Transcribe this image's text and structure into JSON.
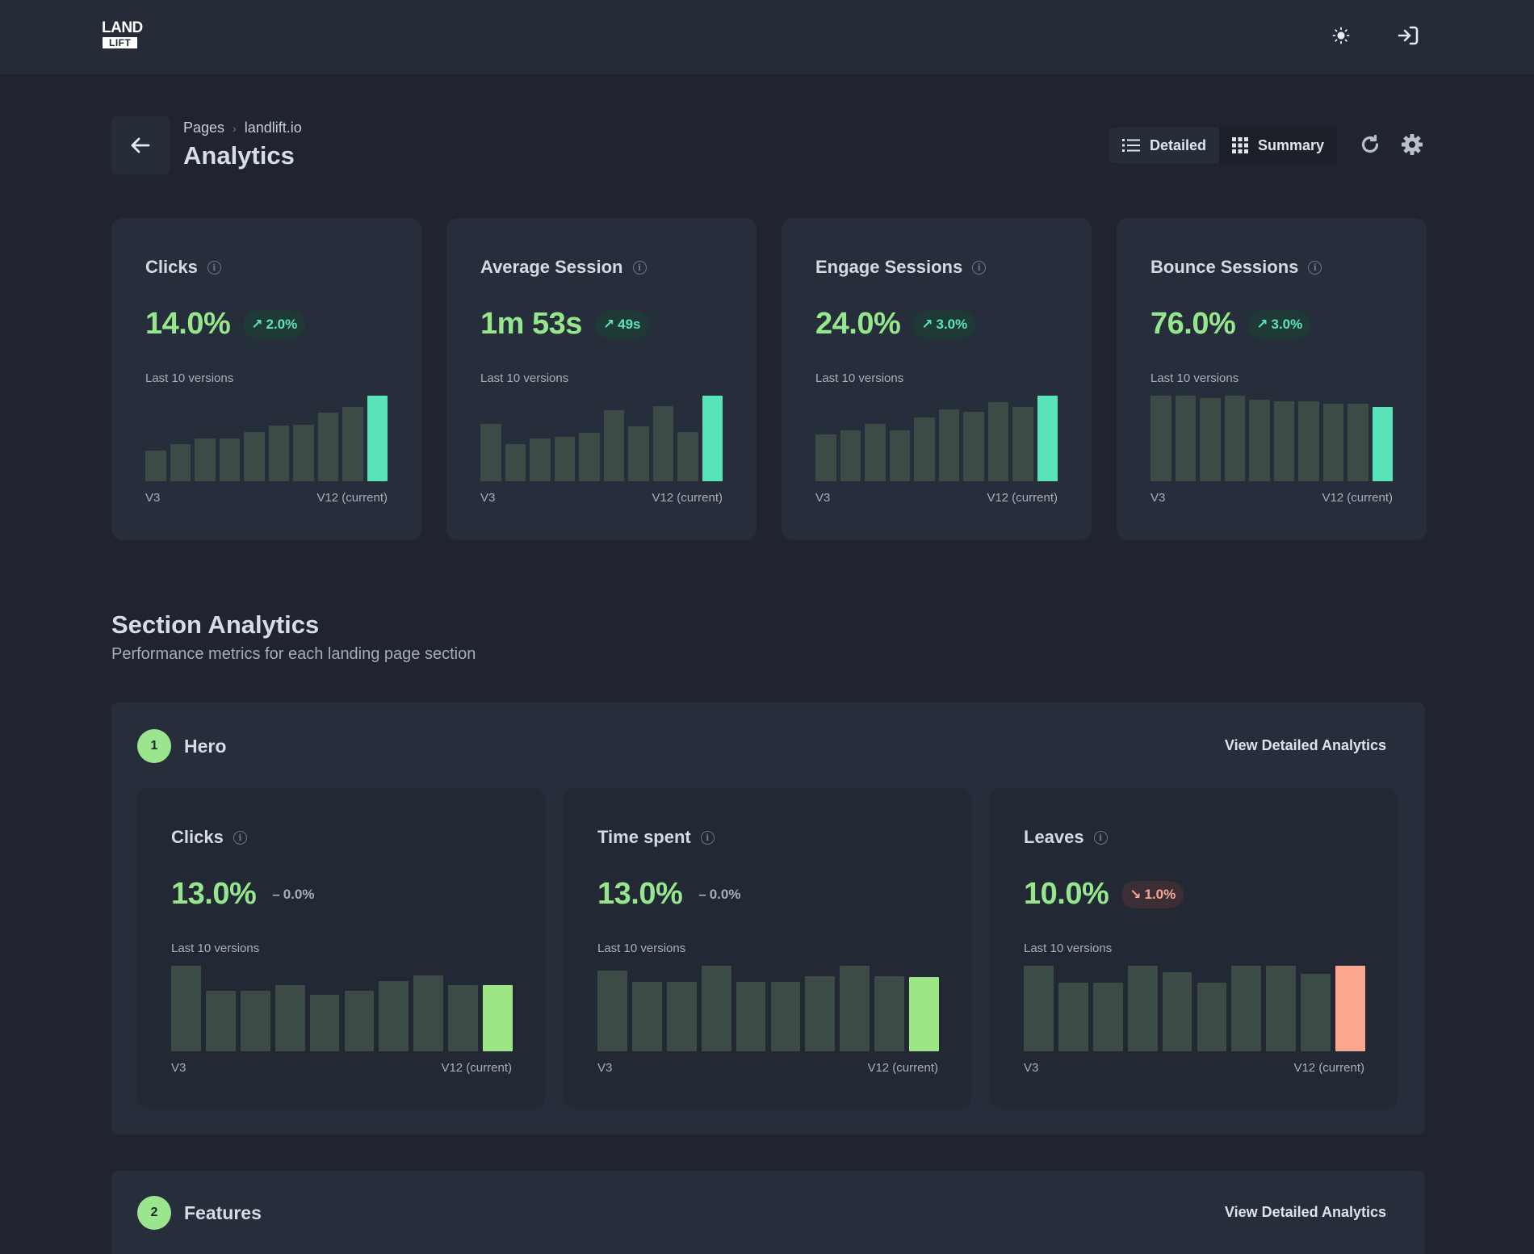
{
  "header": {
    "logo_line1": "LAND",
    "logo_line2": "LIFT",
    "theme_icon": "sun-icon",
    "login_icon": "sign-in-icon"
  },
  "page": {
    "breadcrumb_root": "Pages",
    "breadcrumb_current": "landlift.io",
    "title": "Analytics"
  },
  "view_toggle": {
    "detailed_label": "Detailed",
    "summary_label": "Summary",
    "selected": "Summary"
  },
  "colors": {
    "accent_teal": "#58e3b8",
    "accent_green": "#9ce687",
    "accent_pink": "#fba78f",
    "bar_muted": "#3c4b45"
  },
  "overview_cards": [
    {
      "title": "Clicks",
      "value": "14.0%",
      "change": "2.0%",
      "trend": "up",
      "chart_label": "Last 10 versions",
      "x_start": "V3",
      "x_end": "V12 (current)",
      "bars": [
        36,
        43,
        50,
        50,
        58,
        65,
        66,
        80,
        87,
        100
      ]
    },
    {
      "title": "Average Session",
      "value": "1m 53s",
      "change": "49s",
      "trend": "up",
      "chart_label": "Last 10 versions",
      "x_start": "V3",
      "x_end": "V12 (current)",
      "bars": [
        67,
        43,
        50,
        52,
        57,
        83,
        64,
        88,
        58,
        100
      ]
    },
    {
      "title": "Engage Sessions",
      "value": "24.0%",
      "change": "3.0%",
      "trend": "up",
      "chart_label": "Last 10 versions",
      "x_start": "V3",
      "x_end": "V12 (current)",
      "bars": [
        55,
        59,
        67,
        59,
        75,
        84,
        81,
        92,
        87,
        100
      ]
    },
    {
      "title": "Bounce Sessions",
      "value": "76.0%",
      "change": "3.0%",
      "trend": "up",
      "chart_label": "Last 10 versions",
      "x_start": "V3",
      "x_end": "V12 (current)",
      "bars": [
        100,
        100,
        97,
        100,
        95,
        93,
        93,
        91,
        91,
        87
      ]
    }
  ],
  "section_analytics": {
    "title": "Section Analytics",
    "subtitle": "Performance metrics for each landing page section",
    "sections": [
      {
        "number": "1",
        "name": "Hero",
        "link": "View Detailed Analytics",
        "metrics": [
          {
            "title": "Clicks",
            "value": "13.0%",
            "change": "0.0%",
            "trend": "flat",
            "chart_label": "Last 10 versions",
            "x_start": "V3",
            "x_end": "V12 (current)",
            "bars": [
              100,
              71,
              71,
              77,
              66,
              71,
              82,
              89,
              77,
              77
            ]
          },
          {
            "title": "Time spent",
            "value": "13.0%",
            "change": "0.0%",
            "trend": "flat",
            "chart_label": "Last 10 versions",
            "x_start": "V3",
            "x_end": "V12 (current)",
            "bars": [
              94,
              81,
              81,
              100,
              81,
              81,
              88,
              100,
              88,
              87
            ]
          },
          {
            "title": "Leaves",
            "value": "10.0%",
            "change": "1.0%",
            "trend": "down",
            "chart_label": "Last 10 versions",
            "x_start": "V3",
            "x_end": "V12 (current)",
            "bars": [
              100,
              80,
              80,
              100,
              92,
              80,
              100,
              100,
              91,
              100
            ]
          }
        ]
      },
      {
        "number": "2",
        "name": "Features",
        "link": "View Detailed Analytics"
      }
    ]
  }
}
